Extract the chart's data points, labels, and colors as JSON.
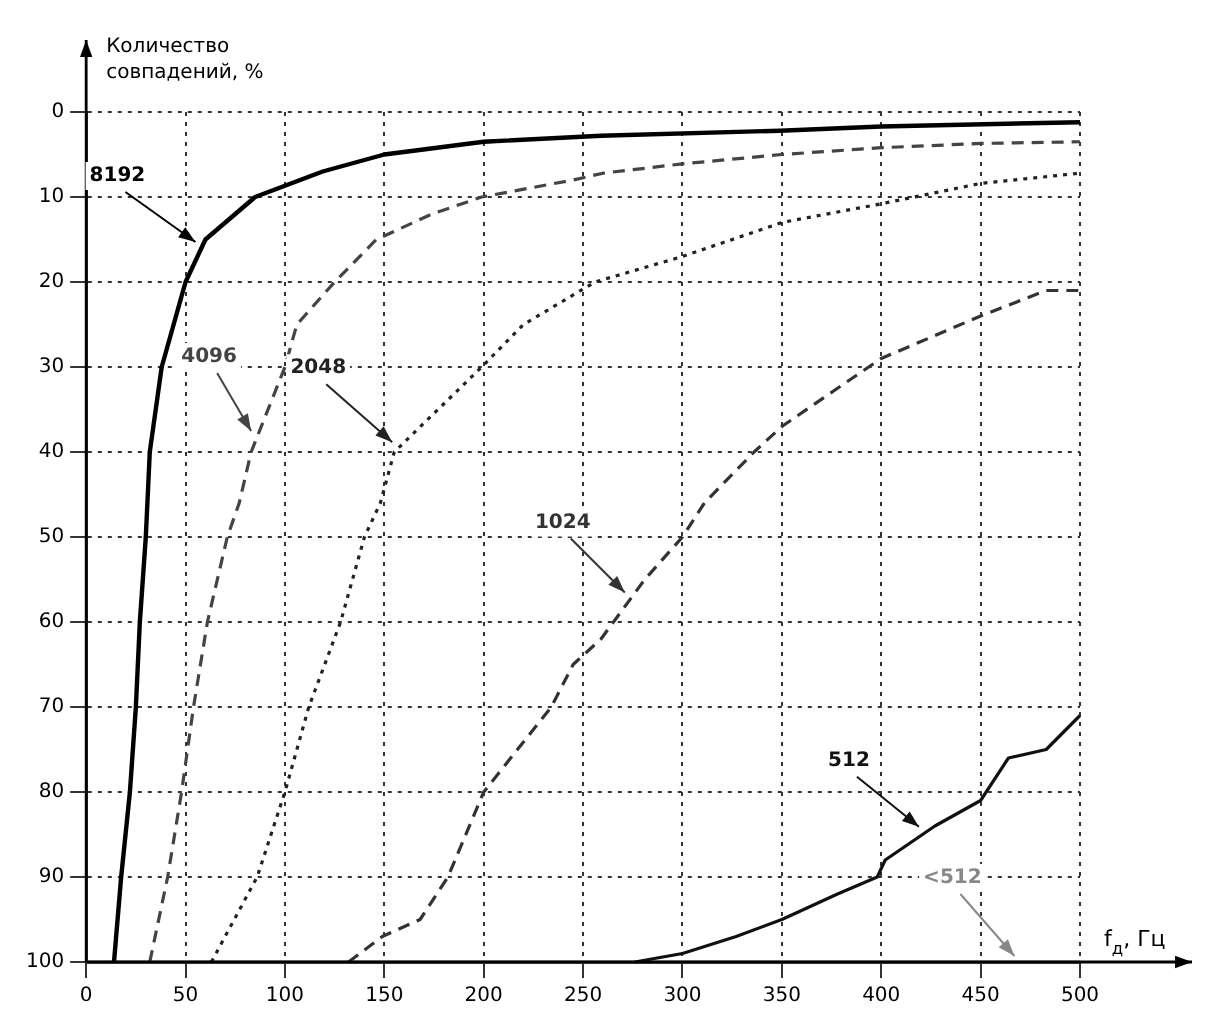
{
  "chart_data": {
    "type": "line",
    "xlabel": "f$_{д}$, Гц",
    "ylabel": "Количество совпадений, %",
    "xlim": [
      0,
      500
    ],
    "xticks": [
      0,
      50,
      100,
      150,
      200,
      250,
      300,
      350,
      400,
      450,
      500
    ],
    "ylim": [
      100,
      0
    ],
    "yticks": [
      0,
      10,
      20,
      30,
      40,
      50,
      60,
      70,
      80,
      90,
      100
    ],
    "grid": true,
    "legend": false,
    "marker": "none",
    "series": [
      {
        "name": "8192",
        "color": "#000000",
        "line_style": "solid",
        "x": [
          14,
          17.6,
          22,
          25,
          27,
          30,
          32,
          38,
          50,
          60,
          85,
          119,
          150,
          200,
          259,
          349,
          400,
          500
        ],
        "values": [
          100,
          90,
          80,
          70,
          60,
          50,
          40,
          30,
          20,
          15,
          10,
          7,
          5,
          3.5,
          2.8,
          2.2,
          1.7,
          1.2
        ]
      },
      {
        "name": "4096",
        "color": "#444444",
        "line_style": "dashed",
        "x": [
          32,
          41,
          48,
          54,
          61,
          71,
          77,
          83,
          100,
          106,
          125,
          146,
          174,
          199,
          245,
          260,
          300,
          350,
          400,
          450,
          500
        ],
        "values": [
          100,
          90,
          80,
          70,
          60,
          50,
          46,
          40,
          30,
          25,
          20,
          15,
          12,
          10,
          8,
          7.2,
          6.1,
          5,
          4.2,
          3.7,
          3.5
        ]
      },
      {
        "name": "2048",
        "color": "#222222",
        "line_style": "dotted",
        "x": [
          63,
          86,
          100,
          112,
          128,
          140,
          148,
          155,
          199,
          220,
          256,
          300,
          350,
          400,
          450,
          500
        ],
        "values": [
          100,
          90,
          80,
          70,
          60,
          50,
          46,
          40,
          30,
          25,
          20,
          17,
          13,
          10.8,
          8.4,
          7.2
        ]
      },
      {
        "name": "1024",
        "color": "#333333",
        "line_style": "dashed",
        "x": [
          132,
          149,
          168,
          182,
          200,
          234,
          245,
          259,
          281,
          300,
          311,
          336,
          350,
          378,
          400,
          430,
          450,
          483,
          500
        ],
        "values": [
          100,
          97,
          95,
          90,
          80,
          70,
          65,
          62,
          55,
          50,
          46,
          40,
          37,
          32.5,
          29,
          26,
          24,
          21,
          21
        ]
      },
      {
        "name": "512",
        "color": "#111111",
        "line_style": "solid",
        "x": [
          276,
          300,
          327,
          350,
          378,
          398,
          402,
          427,
          450,
          464,
          483,
          500
        ],
        "values": [
          100,
          99,
          97,
          95,
          92,
          90,
          88,
          84,
          81,
          76,
          75,
          71
        ]
      },
      {
        "name": "<512",
        "color": "#888888",
        "line_style": "solid",
        "x": [
          0,
          500
        ],
        "values": [
          100,
          100
        ]
      }
    ]
  }
}
